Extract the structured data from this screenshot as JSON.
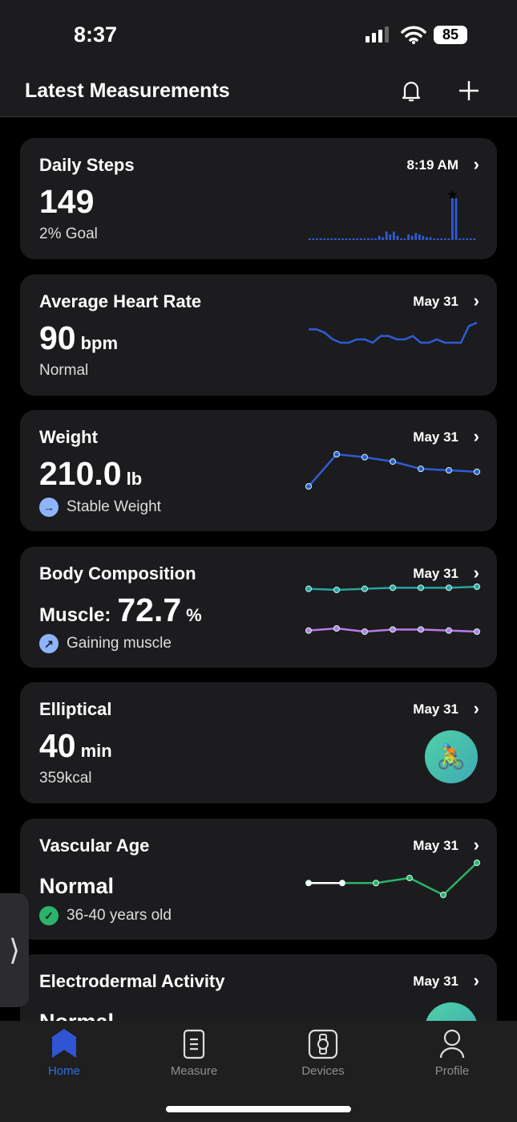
{
  "status": {
    "time": "8:37",
    "battery": "85"
  },
  "header": {
    "title": "Latest Measurements"
  },
  "cards": [
    {
      "title": "Daily Steps",
      "date": "8:19 AM",
      "value": "149",
      "unit": "",
      "subtitle": "2% Goal",
      "chart": {
        "type": "bar",
        "color": "#2f5bd6",
        "values": [
          1,
          1,
          1,
          1,
          1,
          1,
          1,
          1,
          1,
          1,
          1,
          1,
          1,
          1,
          1,
          1,
          1,
          1,
          1,
          3,
          2,
          6,
          4,
          6,
          3,
          1,
          1,
          4,
          3,
          5,
          4,
          3,
          2,
          2,
          1,
          1,
          1,
          1,
          1,
          30,
          30,
          1,
          1,
          1,
          1,
          1
        ],
        "marker_index": 39
      }
    },
    {
      "title": "Average Heart Rate",
      "date": "May 31",
      "value": "90",
      "unit": "bpm",
      "subtitle": "Normal",
      "chart": {
        "type": "line",
        "color": "#2f5bd6",
        "values": [
          93,
          93,
          92,
          90,
          89,
          89,
          90,
          90,
          89,
          91,
          91,
          90,
          90,
          91,
          89,
          89,
          90,
          89,
          89,
          89,
          94,
          95
        ]
      }
    },
    {
      "title": "Weight",
      "date": "May 31",
      "value": "210.0",
      "unit": "lb",
      "subtitle": "Stable Weight",
      "trend_icon": "arrow-right-icon",
      "chart": {
        "type": "line",
        "color": "#2f5bd6",
        "values": [
          210.0,
          212.2,
          212.0,
          211.7,
          211.2,
          211.1,
          211.0
        ]
      }
    },
    {
      "title": "Body Composition",
      "date": "May 31",
      "label": "Muscle:",
      "value": "72.7",
      "unit": "%",
      "subtitle": "Gaining muscle",
      "trend_icon": "arrow-up-right-icon",
      "chart": {
        "type": "line",
        "series": [
          {
            "color": "#2aa3a0",
            "values": [
              72.5,
              72.4,
              72.5,
              72.6,
              72.6,
              72.6,
              72.7
            ]
          },
          {
            "color": "#b77be6",
            "values": [
              27.0,
              27.2,
              26.9,
              27.1,
              27.1,
              27.0,
              26.9
            ]
          }
        ]
      }
    },
    {
      "title": "Elliptical",
      "date": "May 31",
      "value": "40",
      "unit": "min",
      "subtitle": "359kcal",
      "icon": "cycling-icon"
    },
    {
      "title": "Vascular Age",
      "date": "May 31",
      "value": "Normal",
      "unit": "",
      "subtitle": "36-40 years old",
      "trend_icon": "check-icon",
      "chart": {
        "type": "line",
        "color": "#2bb36b",
        "values": [
          0,
          0,
          0,
          0.3,
          -0.7,
          1.2
        ]
      }
    },
    {
      "title": "Electrodermal Activity",
      "date": "May 31",
      "value": "Normal",
      "unit": ""
    }
  ],
  "nav": [
    {
      "label": "Home",
      "active": true
    },
    {
      "label": "Measure"
    },
    {
      "label": "Devices"
    },
    {
      "label": "Profile"
    }
  ],
  "colors": {
    "accent": "#2f6fe0",
    "card": "#1c1c1e"
  }
}
